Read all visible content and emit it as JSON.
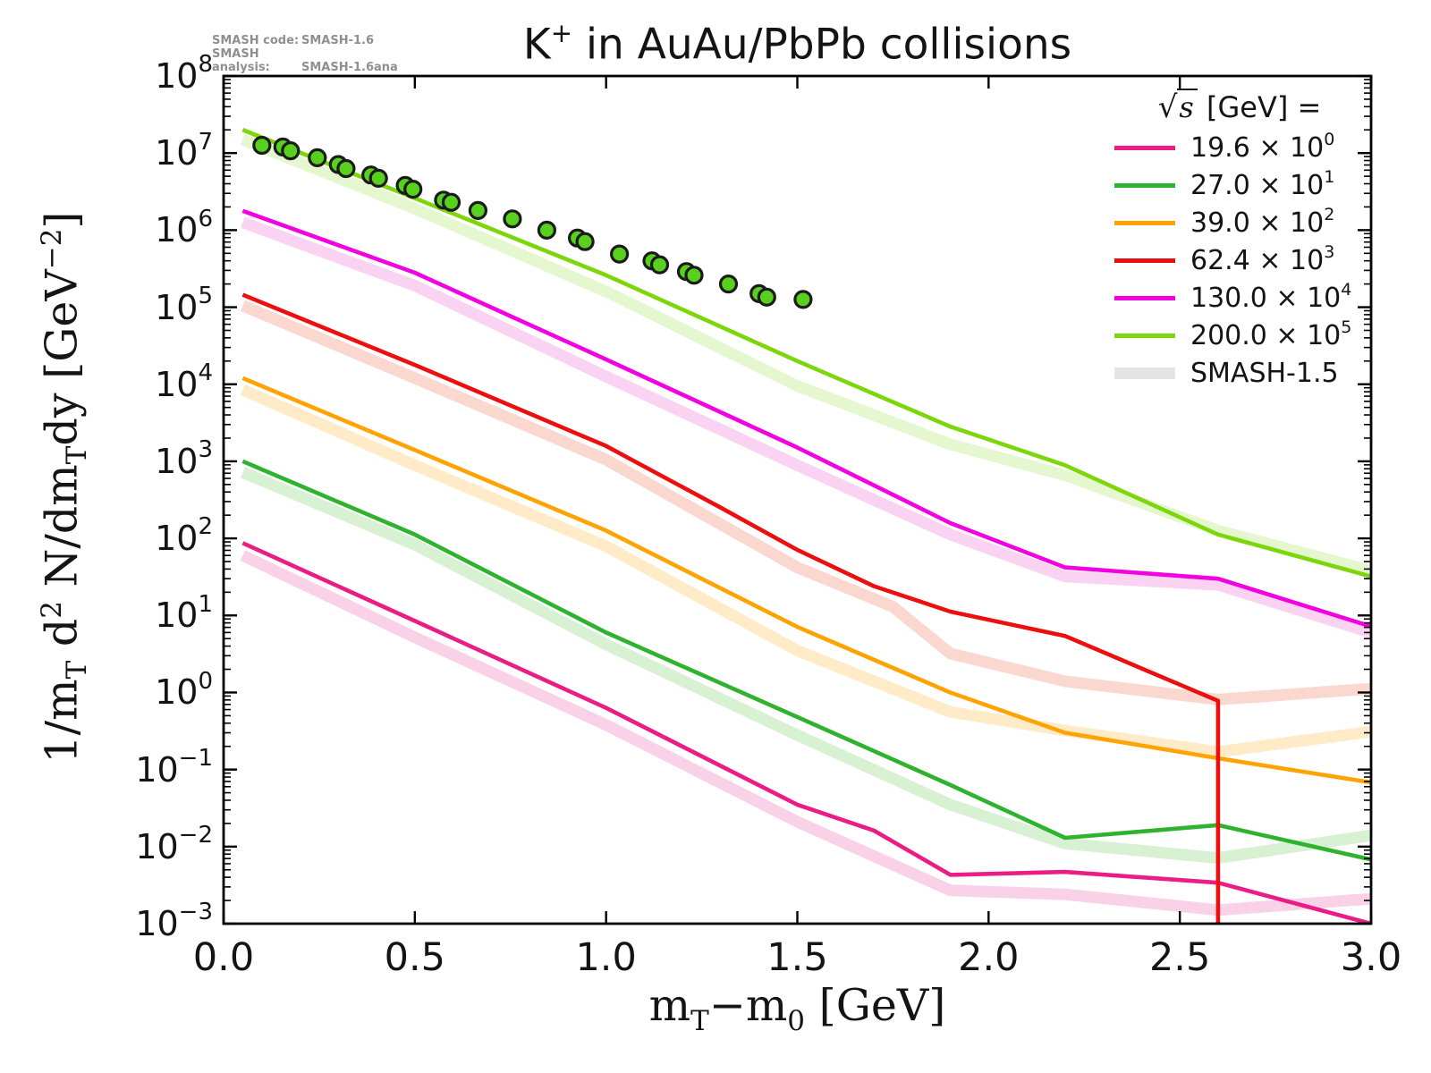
{
  "title": {
    "base": "K",
    "sup": "+",
    "rest": " in AuAu/PbPb collisions"
  },
  "annotation": {
    "line1_label": "SMASH code:",
    "line1_value": "SMASH-1.6",
    "line2_label": "SMASH analysis:",
    "line2_value": "SMASH-1.6ana"
  },
  "axes": {
    "xlabel_parts": {
      "m1": "m",
      "sub1": "T",
      "mid": "−m",
      "sub2": "0",
      "rest": " [GeV]"
    },
    "ylabel_parts": {
      "p1": "1/m",
      "s1": "T",
      "p2": " d",
      "sup2": "2",
      "p3": " N/dm",
      "s3": "T",
      "p4": "dy  [GeV",
      "sup4": "−2",
      "p5": "]"
    }
  },
  "legend": {
    "title_parts": {
      "radical": "√",
      "s": "s",
      "rest": "  [GeV] ="
    },
    "entries": [
      {
        "label": "19.6 × 10",
        "exp": "0",
        "color": "#EA1C85",
        "type": "line"
      },
      {
        "label": "27.0 × 10",
        "exp": "1",
        "color": "#2FB32F",
        "type": "line"
      },
      {
        "label": "39.0 × 10",
        "exp": "2",
        "color": "#FFA302",
        "type": "line"
      },
      {
        "label": "62.4 × 10",
        "exp": "3",
        "color": "#EC0F0F",
        "type": "line"
      },
      {
        "label": "130.0 × 10",
        "exp": "4",
        "color": "#F102E0",
        "type": "line"
      },
      {
        "label": "200.0 × 10",
        "exp": "5",
        "color": "#7CD60A",
        "type": "line"
      },
      {
        "label": "SMASH-1.5",
        "exp": "",
        "color": "#E4E4E4",
        "type": "band"
      }
    ]
  },
  "chart_data": {
    "type": "line",
    "title": "K+ in AuAu/PbPb collisions",
    "xlabel": "mT - m0 [GeV]",
    "ylabel": "1/mT d2 N/dmT dy [GeV-2]",
    "xlim": [
      0,
      3
    ],
    "ylim": [
      0.001,
      100000000
    ],
    "x_ticks": [
      0,
      0.5,
      1.0,
      1.5,
      2.0,
      2.5,
      3.0
    ],
    "x_tick_labels": [
      "0.0",
      "0.5",
      "1.0",
      "1.5",
      "2.0",
      "2.5",
      "3.0"
    ],
    "y_tick_exponents": [
      8,
      7,
      6,
      5,
      4,
      3,
      2,
      1,
      0,
      -1,
      -2,
      -3
    ],
    "grid": false,
    "legend_position": "upper right",
    "series": [
      {
        "name": "19.6 × 10^0",
        "sqrt_s_gev": 19.6,
        "scale_exp": 0,
        "color": "#EA1C85",
        "band_color": "#FAD2E8",
        "values": [
          [
            0.05,
            87
          ],
          [
            0.5,
            8.5
          ],
          [
            1.0,
            0.63
          ],
          [
            1.5,
            0.035
          ],
          [
            1.7,
            0.0162
          ],
          [
            1.9,
            0.0043
          ],
          [
            2.2,
            0.0047
          ],
          [
            2.6,
            0.0034
          ],
          [
            3.0,
            0.001
          ]
        ],
        "band": [
          [
            0.05,
            60
          ],
          [
            0.5,
            5.2
          ],
          [
            1.0,
            0.38
          ],
          [
            1.5,
            0.021
          ],
          [
            1.9,
            0.0027
          ],
          [
            2.2,
            0.0024
          ],
          [
            2.6,
            0.0015
          ],
          [
            3.0,
            0.0021
          ]
        ]
      },
      {
        "name": "27.0 × 10^1",
        "sqrt_s_gev": 27.0,
        "scale_exp": 1,
        "color": "#2FB32F",
        "band_color": "#D8F1D3",
        "values": [
          [
            0.05,
            1000
          ],
          [
            0.5,
            112
          ],
          [
            1.0,
            6.0
          ],
          [
            1.5,
            0.48
          ],
          [
            1.9,
            0.063
          ],
          [
            2.2,
            0.013
          ],
          [
            2.6,
            0.019
          ],
          [
            3.0,
            0.0068
          ]
        ],
        "band": [
          [
            0.05,
            720
          ],
          [
            0.5,
            83
          ],
          [
            1.0,
            4.2
          ],
          [
            1.5,
            0.28
          ],
          [
            1.9,
            0.035
          ],
          [
            2.2,
            0.011
          ],
          [
            2.6,
            0.0071
          ],
          [
            3.0,
            0.014
          ]
        ]
      },
      {
        "name": "39.0 × 10^2",
        "sqrt_s_gev": 39.0,
        "scale_exp": 2,
        "color": "#FFA302",
        "band_color": "#FFEBC8",
        "values": [
          [
            0.05,
            12000
          ],
          [
            0.5,
            1400
          ],
          [
            1.0,
            126
          ],
          [
            1.5,
            7.1
          ],
          [
            1.9,
            1.0
          ],
          [
            2.2,
            0.3
          ],
          [
            2.6,
            0.14
          ],
          [
            3.0,
            0.068
          ]
        ],
        "band": [
          [
            0.05,
            8500
          ],
          [
            0.5,
            890
          ],
          [
            1.0,
            79
          ],
          [
            1.5,
            3.5
          ],
          [
            1.9,
            0.56
          ],
          [
            2.2,
            0.32
          ],
          [
            2.6,
            0.17
          ],
          [
            3.0,
            0.31
          ]
        ]
      },
      {
        "name": "62.4 × 10^3",
        "sqrt_s_gev": 62.4,
        "scale_exp": 3,
        "color": "#EC0F0F",
        "band_color": "#FAD7CF",
        "values": [
          [
            0.05,
            145000
          ],
          [
            0.5,
            17800
          ],
          [
            1.0,
            1580
          ],
          [
            1.3,
            250
          ],
          [
            1.5,
            71
          ],
          [
            1.7,
            24
          ],
          [
            1.9,
            11.2
          ],
          [
            2.2,
            5.4
          ],
          [
            2.6,
            0.78
          ],
          [
            2.6,
            0.0004
          ]
        ],
        "band": [
          [
            0.05,
            105000
          ],
          [
            0.5,
            12000
          ],
          [
            1.0,
            1050
          ],
          [
            1.5,
            42
          ],
          [
            1.75,
            13
          ],
          [
            1.9,
            3.2
          ],
          [
            2.2,
            1.4
          ],
          [
            2.6,
            0.81
          ],
          [
            3.0,
            1.12
          ]
        ]
      },
      {
        "name": "130.0 × 10^4",
        "sqrt_s_gev": 130.0,
        "scale_exp": 4,
        "color": "#F102E0",
        "band_color": "#FAD2F2",
        "values": [
          [
            0.05,
            1780000
          ],
          [
            0.5,
            280000
          ],
          [
            1.0,
            21000
          ],
          [
            1.5,
            1510
          ],
          [
            1.9,
            158
          ],
          [
            2.2,
            42
          ],
          [
            2.6,
            30
          ],
          [
            3.0,
            7.2
          ]
        ],
        "band": [
          [
            0.05,
            1260000
          ],
          [
            0.5,
            190000
          ],
          [
            1.0,
            12600
          ],
          [
            1.5,
            890
          ],
          [
            1.9,
            112
          ],
          [
            2.2,
            32
          ],
          [
            2.6,
            25
          ],
          [
            3.0,
            6.0
          ]
        ]
      },
      {
        "name": "200.0 × 10^5",
        "sqrt_s_gev": 200.0,
        "scale_exp": 5,
        "color": "#7CD60A",
        "band_color": "#E4F7CF",
        "values": [
          [
            0.05,
            20000000
          ],
          [
            0.5,
            2600000
          ],
          [
            1.0,
            260000
          ],
          [
            1.5,
            20000
          ],
          [
            1.9,
            2820
          ],
          [
            2.2,
            890
          ],
          [
            2.6,
            112
          ],
          [
            3.0,
            32
          ]
        ],
        "band": [
          [
            0.05,
            15000000
          ],
          [
            0.5,
            1900000
          ],
          [
            1.0,
            160000
          ],
          [
            1.5,
            9500
          ],
          [
            1.9,
            1660
          ],
          [
            2.2,
            660
          ],
          [
            2.6,
            126
          ],
          [
            3.0,
            38
          ]
        ]
      }
    ],
    "points": {
      "name": "experimental-data-points",
      "color": "#58D11E",
      "edge_color": "#1b1b1b",
      "values": [
        [
          0.1,
          12600000
        ],
        [
          0.155,
          12000000
        ],
        [
          0.175,
          10700000
        ],
        [
          0.245,
          8700000
        ],
        [
          0.3,
          7100000
        ],
        [
          0.32,
          6300000
        ],
        [
          0.385,
          5200000
        ],
        [
          0.405,
          4700000
        ],
        [
          0.475,
          3800000
        ],
        [
          0.495,
          3400000
        ],
        [
          0.575,
          2450000
        ],
        [
          0.595,
          2300000
        ],
        [
          0.665,
          1800000
        ],
        [
          0.755,
          1400000
        ],
        [
          0.845,
          1000000
        ],
        [
          0.925,
          790000
        ],
        [
          0.945,
          710000
        ],
        [
          1.035,
          490000
        ],
        [
          1.12,
          400000
        ],
        [
          1.14,
          355000
        ],
        [
          1.21,
          290000
        ],
        [
          1.23,
          260000
        ],
        [
          1.32,
          200000
        ],
        [
          1.4,
          150000
        ],
        [
          1.42,
          135000
        ],
        [
          1.515,
          126000
        ]
      ]
    },
    "smash15_reference": {
      "label": "SMASH-1.5",
      "color": "#E4E4E4"
    }
  }
}
